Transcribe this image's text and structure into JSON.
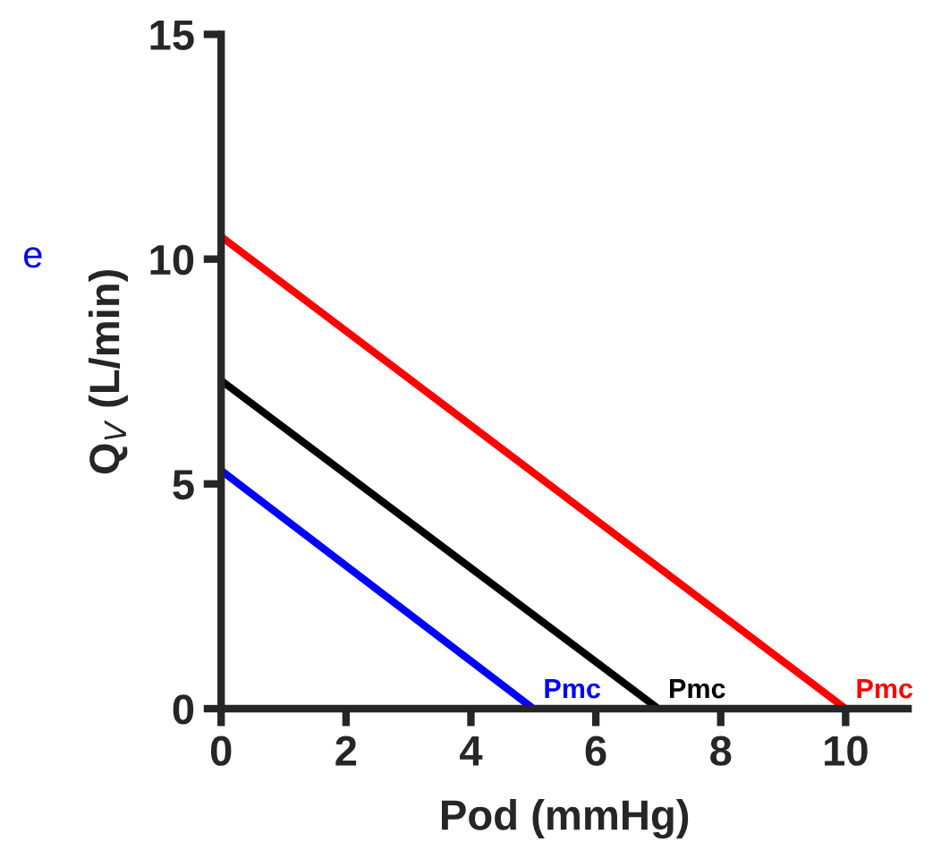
{
  "chart_data": {
    "type": "line",
    "xlabel": "Pod (mmHg)",
    "ylabel": "Q$_{V}$ (L/min)",
    "annotations": [
      "e"
    ],
    "xlim": [
      0,
      11
    ],
    "xticks": [
      0,
      2,
      4,
      6,
      8,
      10
    ],
    "ylim": [
      0,
      15
    ],
    "yticks": [
      0,
      5,
      10,
      15
    ],
    "grid": false,
    "legend": false,
    "marker": "none",
    "line_style": "solid",
    "series": [
      {
        "name": "Pmc",
        "color": "#ff0000",
        "x": [
          0,
          10
        ],
        "values": [
          10.5,
          0
        ]
      },
      {
        "name": "Pmc",
        "color": "#000000",
        "x": [
          0,
          7
        ],
        "values": [
          7.3,
          0
        ]
      },
      {
        "name": "Pmc",
        "color": "#0000ff",
        "x": [
          0,
          5
        ],
        "values": [
          5.3,
          0
        ]
      }
    ]
  }
}
